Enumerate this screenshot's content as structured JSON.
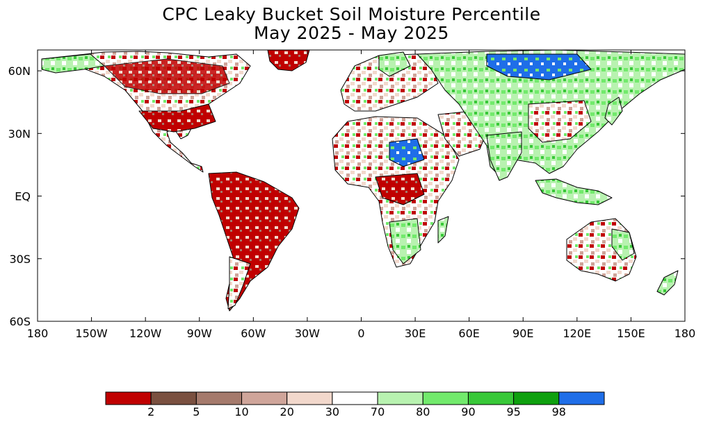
{
  "title_line1": "CPC Leaky Bucket Soil Moisture Percentile",
  "title_line2": "May 2025 - May 2025",
  "lon_ticks": [
    "180",
    "150W",
    "120W",
    "90W",
    "60W",
    "30W",
    "0",
    "30E",
    "60E",
    "90E",
    "120E",
    "150E",
    "180"
  ],
  "lat_ticks": [
    "60N",
    "30N",
    "EQ",
    "30S",
    "60S"
  ],
  "legend": {
    "colors": [
      "#c00000",
      "#7a5040",
      "#a57a6c",
      "#cfa59a",
      "#f2d8cc",
      "#ffffff",
      "#b8f2b0",
      "#72ea6c",
      "#38c838",
      "#0ea00e",
      "#1f6ee8"
    ],
    "labels": [
      "2",
      "5",
      "10",
      "20",
      "30",
      "70",
      "80",
      "90",
      "95",
      "98"
    ]
  }
}
